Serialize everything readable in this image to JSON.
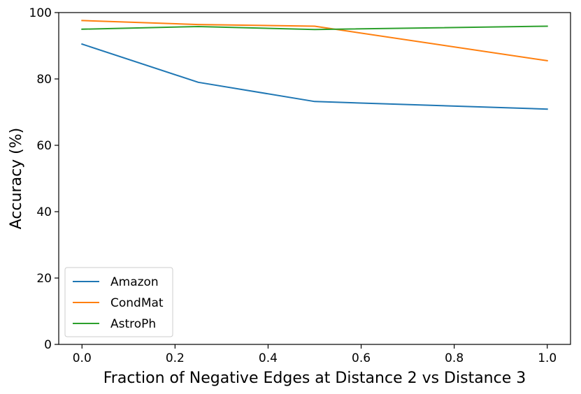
{
  "chart_data": {
    "type": "line",
    "title": "",
    "xlabel": "Fraction of Negative Edges at Distance 2 vs Distance 3",
    "ylabel": "Accuracy (%)",
    "xlim": [
      -0.05,
      1.05
    ],
    "ylim": [
      0,
      100
    ],
    "xticks": [
      0.0,
      0.2,
      0.4,
      0.6,
      0.8,
      1.0
    ],
    "xtick_labels": [
      "0.0",
      "0.2",
      "0.4",
      "0.6",
      "0.8",
      "1.0"
    ],
    "yticks": [
      0,
      20,
      40,
      60,
      80,
      100
    ],
    "ytick_labels": [
      "0",
      "20",
      "40",
      "60",
      "80",
      "100"
    ],
    "grid": false,
    "legend_position": "lower-left",
    "x": [
      0.0,
      0.25,
      0.5,
      1.0
    ],
    "series": [
      {
        "name": "Amazon",
        "color": "#1f77b4",
        "values": [
          90.5,
          79.0,
          73.2,
          70.9
        ]
      },
      {
        "name": "CondMat",
        "color": "#ff7f0e",
        "values": [
          97.6,
          96.4,
          95.9,
          85.5
        ]
      },
      {
        "name": "AstroPh",
        "color": "#2ca02c",
        "values": [
          95.0,
          95.8,
          94.9,
          95.9
        ]
      }
    ]
  }
}
